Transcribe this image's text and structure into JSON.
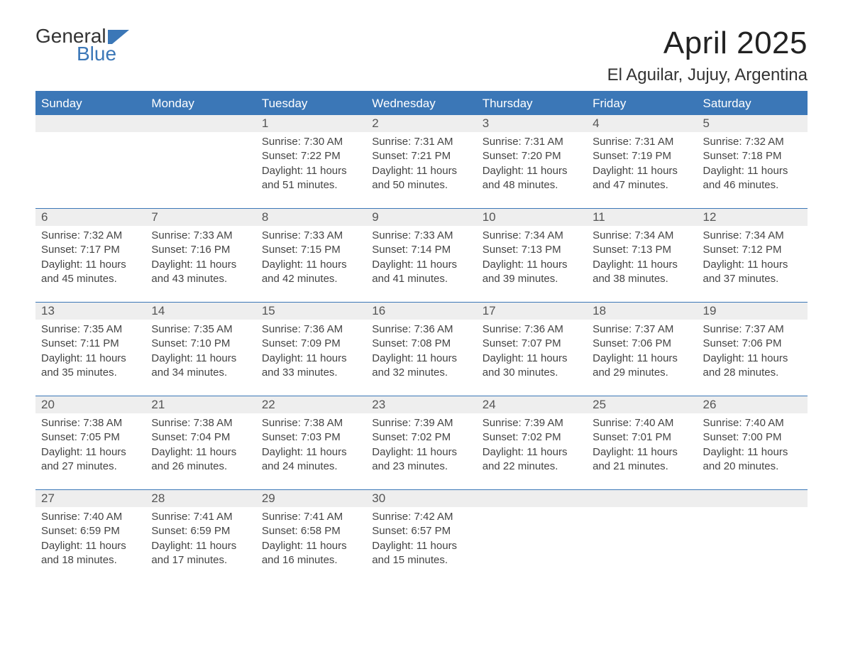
{
  "brand": {
    "word1": "General",
    "word2": "Blue",
    "accent": "#3b77b7"
  },
  "title": "April 2025",
  "location": "El Aguilar, Jujuy, Argentina",
  "colors": {
    "header_bg": "#3b77b7",
    "header_text": "#ffffff",
    "daynum_bg": "#eeeeee",
    "row_border": "#3b77b7",
    "text": "#333333"
  },
  "day_names": [
    "Sunday",
    "Monday",
    "Tuesday",
    "Wednesday",
    "Thursday",
    "Friday",
    "Saturday"
  ],
  "labels": {
    "sunrise": "Sunrise: ",
    "sunset": "Sunset: ",
    "daylight": "Daylight: "
  },
  "weeks": [
    [
      null,
      null,
      {
        "d": "1",
        "sr": "7:30 AM",
        "ss": "7:22 PM",
        "dl": "11 hours and 51 minutes."
      },
      {
        "d": "2",
        "sr": "7:31 AM",
        "ss": "7:21 PM",
        "dl": "11 hours and 50 minutes."
      },
      {
        "d": "3",
        "sr": "7:31 AM",
        "ss": "7:20 PM",
        "dl": "11 hours and 48 minutes."
      },
      {
        "d": "4",
        "sr": "7:31 AM",
        "ss": "7:19 PM",
        "dl": "11 hours and 47 minutes."
      },
      {
        "d": "5",
        "sr": "7:32 AM",
        "ss": "7:18 PM",
        "dl": "11 hours and 46 minutes."
      }
    ],
    [
      {
        "d": "6",
        "sr": "7:32 AM",
        "ss": "7:17 PM",
        "dl": "11 hours and 45 minutes."
      },
      {
        "d": "7",
        "sr": "7:33 AM",
        "ss": "7:16 PM",
        "dl": "11 hours and 43 minutes."
      },
      {
        "d": "8",
        "sr": "7:33 AM",
        "ss": "7:15 PM",
        "dl": "11 hours and 42 minutes."
      },
      {
        "d": "9",
        "sr": "7:33 AM",
        "ss": "7:14 PM",
        "dl": "11 hours and 41 minutes."
      },
      {
        "d": "10",
        "sr": "7:34 AM",
        "ss": "7:13 PM",
        "dl": "11 hours and 39 minutes."
      },
      {
        "d": "11",
        "sr": "7:34 AM",
        "ss": "7:13 PM",
        "dl": "11 hours and 38 minutes."
      },
      {
        "d": "12",
        "sr": "7:34 AM",
        "ss": "7:12 PM",
        "dl": "11 hours and 37 minutes."
      }
    ],
    [
      {
        "d": "13",
        "sr": "7:35 AM",
        "ss": "7:11 PM",
        "dl": "11 hours and 35 minutes."
      },
      {
        "d": "14",
        "sr": "7:35 AM",
        "ss": "7:10 PM",
        "dl": "11 hours and 34 minutes."
      },
      {
        "d": "15",
        "sr": "7:36 AM",
        "ss": "7:09 PM",
        "dl": "11 hours and 33 minutes."
      },
      {
        "d": "16",
        "sr": "7:36 AM",
        "ss": "7:08 PM",
        "dl": "11 hours and 32 minutes."
      },
      {
        "d": "17",
        "sr": "7:36 AM",
        "ss": "7:07 PM",
        "dl": "11 hours and 30 minutes."
      },
      {
        "d": "18",
        "sr": "7:37 AM",
        "ss": "7:06 PM",
        "dl": "11 hours and 29 minutes."
      },
      {
        "d": "19",
        "sr": "7:37 AM",
        "ss": "7:06 PM",
        "dl": "11 hours and 28 minutes."
      }
    ],
    [
      {
        "d": "20",
        "sr": "7:38 AM",
        "ss": "7:05 PM",
        "dl": "11 hours and 27 minutes."
      },
      {
        "d": "21",
        "sr": "7:38 AM",
        "ss": "7:04 PM",
        "dl": "11 hours and 26 minutes."
      },
      {
        "d": "22",
        "sr": "7:38 AM",
        "ss": "7:03 PM",
        "dl": "11 hours and 24 minutes."
      },
      {
        "d": "23",
        "sr": "7:39 AM",
        "ss": "7:02 PM",
        "dl": "11 hours and 23 minutes."
      },
      {
        "d": "24",
        "sr": "7:39 AM",
        "ss": "7:02 PM",
        "dl": "11 hours and 22 minutes."
      },
      {
        "d": "25",
        "sr": "7:40 AM",
        "ss": "7:01 PM",
        "dl": "11 hours and 21 minutes."
      },
      {
        "d": "26",
        "sr": "7:40 AM",
        "ss": "7:00 PM",
        "dl": "11 hours and 20 minutes."
      }
    ],
    [
      {
        "d": "27",
        "sr": "7:40 AM",
        "ss": "6:59 PM",
        "dl": "11 hours and 18 minutes."
      },
      {
        "d": "28",
        "sr": "7:41 AM",
        "ss": "6:59 PM",
        "dl": "11 hours and 17 minutes."
      },
      {
        "d": "29",
        "sr": "7:41 AM",
        "ss": "6:58 PM",
        "dl": "11 hours and 16 minutes."
      },
      {
        "d": "30",
        "sr": "7:42 AM",
        "ss": "6:57 PM",
        "dl": "11 hours and 15 minutes."
      },
      null,
      null,
      null
    ]
  ]
}
